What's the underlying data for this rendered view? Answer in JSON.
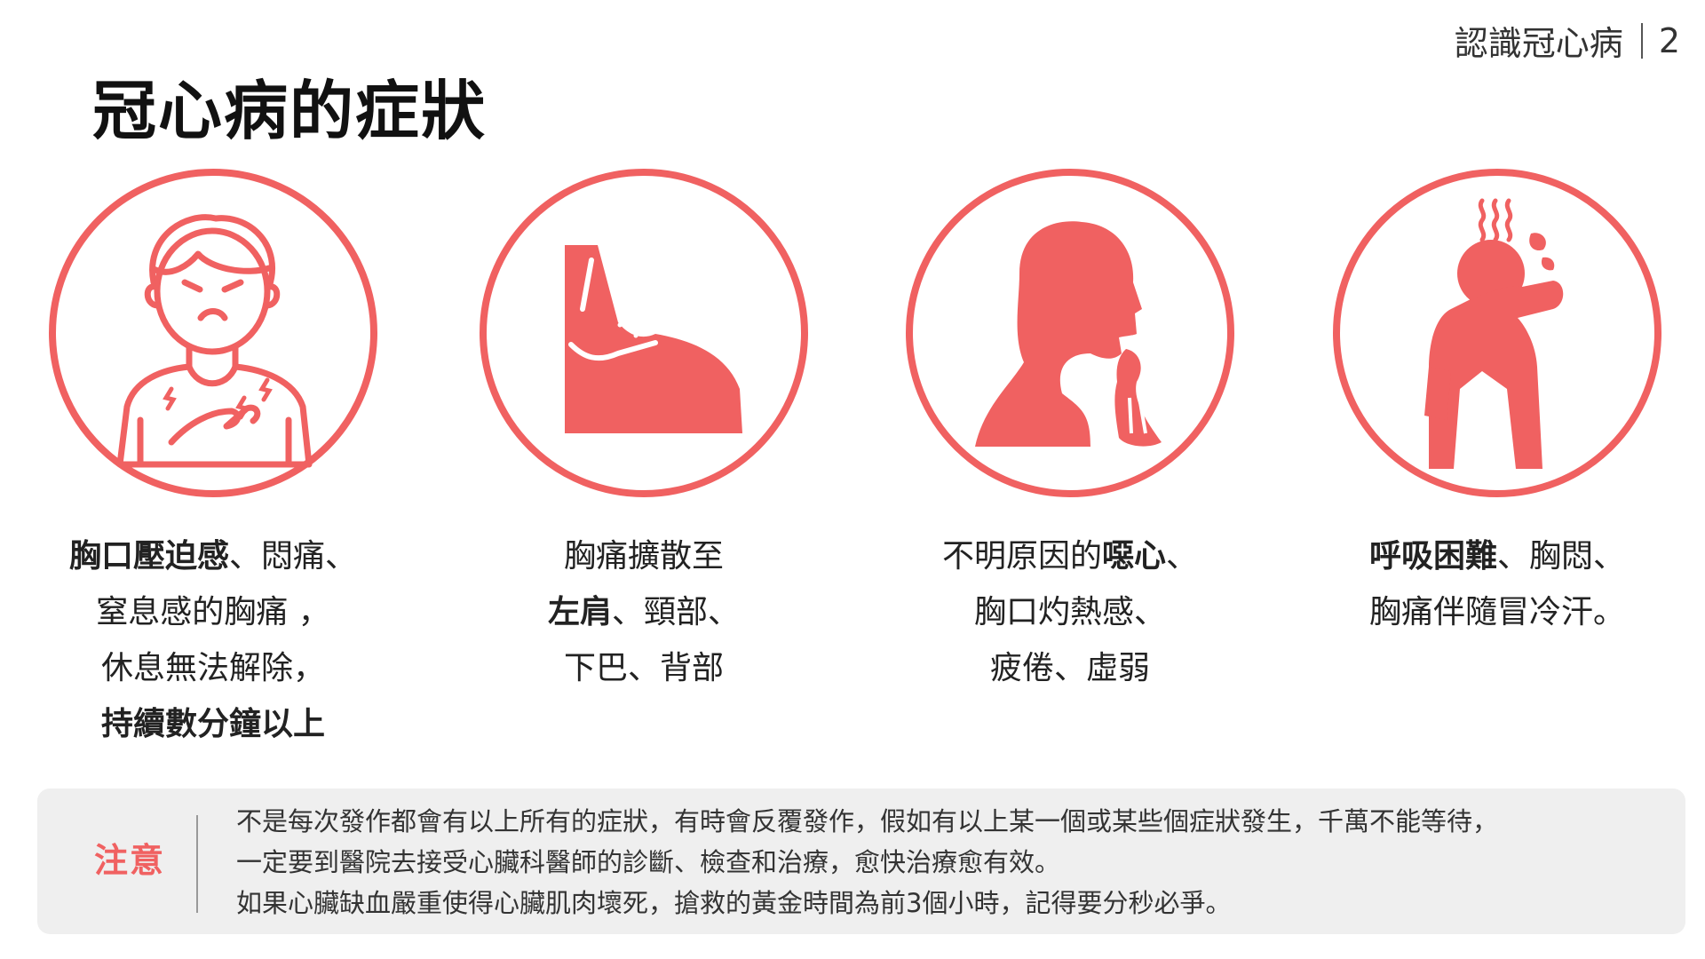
{
  "header": {
    "section": "認識冠心病",
    "page": "2"
  },
  "title": "冠心病的症狀",
  "colors": {
    "accent": "#f06161",
    "note_bg": "#efefef"
  },
  "symptoms": [
    {
      "icon": "chest-pain-person-icon",
      "lines": [
        [
          {
            "t": "胸口壓迫感",
            "b": true
          },
          {
            "t": "、悶痛、",
            "b": false
          }
        ],
        [
          {
            "t": "窒息感的胸痛 ，",
            "b": false
          }
        ],
        [
          {
            "t": "休息無法解除，",
            "b": false
          }
        ],
        [
          {
            "t": "持續數分鐘以上",
            "b": true
          }
        ]
      ]
    },
    {
      "icon": "neck-shoulder-icon",
      "lines": [
        [
          {
            "t": "胸痛擴散至",
            "b": false
          }
        ],
        [
          {
            "t": "左肩",
            "b": true
          },
          {
            "t": "、頸部、",
            "b": false
          }
        ],
        [
          {
            "t": "下巴、背部",
            "b": false
          }
        ]
      ]
    },
    {
      "icon": "vomiting-head-icon",
      "lines": [
        [
          {
            "t": "不明原因的",
            "b": false
          },
          {
            "t": "噁心",
            "b": true
          },
          {
            "t": "、",
            "b": false
          }
        ],
        [
          {
            "t": "胸口灼熱感、",
            "b": false
          }
        ],
        [
          {
            "t": "疲倦、虛弱",
            "b": false
          }
        ]
      ]
    },
    {
      "icon": "sweating-person-icon",
      "lines": [
        [
          {
            "t": "呼吸困難",
            "b": true
          },
          {
            "t": "、胸悶、",
            "b": false
          }
        ],
        [
          {
            "t": "胸痛伴隨冒冷汗。",
            "b": false
          }
        ]
      ]
    }
  ],
  "note": {
    "label": "注意",
    "lines": [
      "不是每次發作都會有以上所有的症狀，有時會反覆發作，假如有以上某一個或某些個症狀發生，千萬不能等待，",
      "一定要到醫院去接受心臟科醫師的診斷、檢查和治療，愈快治療愈有效。",
      "如果心臟缺血嚴重使得心臟肌肉壞死，搶救的黃金時間為前3個小時，記得要分秒必爭。"
    ]
  }
}
